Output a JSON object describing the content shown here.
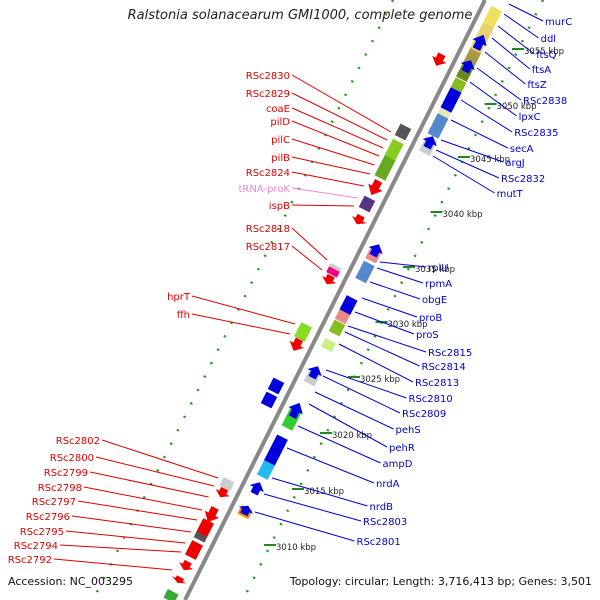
{
  "title": "Ralstonia solanacearum GMI1000, complete genome",
  "accession": "Accession: NC_003295",
  "topology": "Topology: circular; Length: 3,716,413 bp; Genes: 3,501",
  "colors": {
    "backbone": "#888888",
    "tick_dot": "#229922",
    "left_label": "#dd0000",
    "right_label": "#0000cc",
    "trna_label": "#ee88cc"
  },
  "kbp_ticks": [
    "3055 kbp",
    "3050 kbp",
    "3045 kbp",
    "3040 kbp",
    "3035 kbp",
    "3030 kbp",
    "3025 kbp",
    "3020 kbp",
    "3015 kbp",
    "3010 kbp"
  ],
  "left_labels": [
    "RSc2830",
    "RSc2829",
    "coaE",
    "pilD",
    "pilC",
    "pilB",
    "RSc2824",
    "tRNA-proK",
    "ispB",
    "RSc2818",
    "RSc2817",
    "hprT",
    "ffh",
    "RSc2802",
    "RSc2800",
    "RSc2799",
    "RSc2798",
    "RSc2797",
    "RSc2796",
    "RSc2795",
    "RSc2794",
    "RSc2792"
  ],
  "right_labels": [
    "murC",
    "ddl",
    "ftsQ",
    "ftsA",
    "ftsZ",
    "RSc2838",
    "lpxC",
    "RSc2835",
    "secA",
    "argJ",
    "RSc2832",
    "mutT",
    "rplU",
    "rpmA",
    "obgE",
    "proB",
    "proS",
    "RSc2815",
    "RSc2814",
    "RSc2813",
    "RSc2810",
    "RSc2809",
    "pehS",
    "pehR",
    "ampD",
    "nrdA",
    "nrdB",
    "RSc2803",
    "RSc2801"
  ]
}
